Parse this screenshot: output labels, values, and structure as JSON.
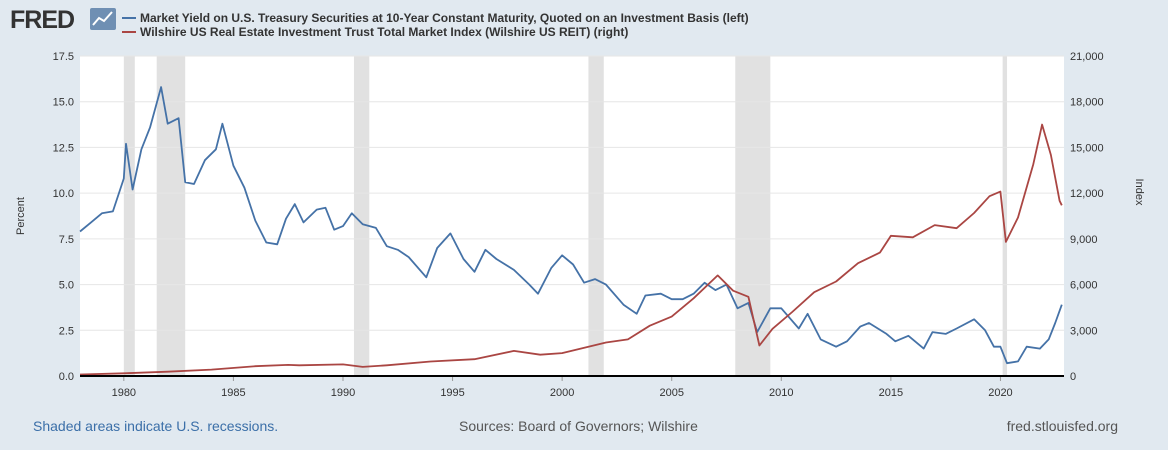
{
  "header": {
    "logo_text": "FRED"
  },
  "footer": {
    "recession_note": "Shaded areas indicate U.S. recessions.",
    "sources": "Sources: Board of Governors; Wilshire",
    "site": "fred.stlouisfed.org"
  },
  "colors": {
    "left_series": "#4572a7",
    "right_series": "#aa4643",
    "recession": "#e1e1e1",
    "background": "#e1e9f0"
  },
  "chart_data": {
    "type": "line",
    "grid": true,
    "legend_placement": "top-left",
    "x_range": [
      1978.0,
      2022.9
    ],
    "x_ticks": [
      "1980",
      "1985",
      "1990",
      "1995",
      "2000",
      "2005",
      "2010",
      "2015",
      "2020"
    ],
    "left_axis": {
      "label": "Percent",
      "range": [
        0,
        17.5
      ],
      "ticks": [
        "0.0",
        "2.5",
        "5.0",
        "7.5",
        "10.0",
        "12.5",
        "15.0",
        "17.5"
      ]
    },
    "right_axis": {
      "label": "Index",
      "range": [
        0,
        21000
      ],
      "ticks": [
        "0",
        "3,000",
        "6,000",
        "9,000",
        "12,000",
        "15,000",
        "18,000",
        "21,000"
      ]
    },
    "recessions": [
      [
        1980.0,
        1980.5
      ],
      [
        1981.5,
        1982.8
      ],
      [
        1990.5,
        1991.2
      ],
      [
        2001.2,
        2001.9
      ],
      [
        2007.9,
        2009.5
      ],
      [
        2020.1,
        2020.3
      ]
    ],
    "series": [
      {
        "name": "Market Yield on U.S. Treasury Securities at 10-Year Constant Maturity, Quoted on an Investment Basis (left)",
        "axis": "left",
        "points": [
          [
            1978.0,
            7.9
          ],
          [
            1978.5,
            8.4
          ],
          [
            1979.0,
            8.9
          ],
          [
            1979.5,
            9.0
          ],
          [
            1980.0,
            10.8
          ],
          [
            1980.1,
            12.7
          ],
          [
            1980.4,
            10.2
          ],
          [
            1980.8,
            12.4
          ],
          [
            1981.2,
            13.6
          ],
          [
            1981.7,
            15.8
          ],
          [
            1982.0,
            13.8
          ],
          [
            1982.5,
            14.1
          ],
          [
            1982.8,
            10.6
          ],
          [
            1983.2,
            10.5
          ],
          [
            1983.7,
            11.8
          ],
          [
            1984.2,
            12.4
          ],
          [
            1984.5,
            13.8
          ],
          [
            1985.0,
            11.5
          ],
          [
            1985.5,
            10.3
          ],
          [
            1986.0,
            8.5
          ],
          [
            1986.5,
            7.3
          ],
          [
            1987.0,
            7.2
          ],
          [
            1987.4,
            8.6
          ],
          [
            1987.8,
            9.4
          ],
          [
            1988.2,
            8.4
          ],
          [
            1988.8,
            9.1
          ],
          [
            1989.2,
            9.2
          ],
          [
            1989.6,
            8.0
          ],
          [
            1990.0,
            8.2
          ],
          [
            1990.4,
            8.9
          ],
          [
            1990.9,
            8.3
          ],
          [
            1991.5,
            8.1
          ],
          [
            1992.0,
            7.1
          ],
          [
            1992.5,
            6.9
          ],
          [
            1993.0,
            6.5
          ],
          [
            1993.8,
            5.4
          ],
          [
            1994.3,
            7.0
          ],
          [
            1994.9,
            7.8
          ],
          [
            1995.5,
            6.4
          ],
          [
            1996.0,
            5.7
          ],
          [
            1996.5,
            6.9
          ],
          [
            1997.0,
            6.4
          ],
          [
            1997.8,
            5.8
          ],
          [
            1998.5,
            5.0
          ],
          [
            1998.9,
            4.5
          ],
          [
            1999.5,
            5.9
          ],
          [
            2000.0,
            6.6
          ],
          [
            2000.5,
            6.1
          ],
          [
            2001.0,
            5.1
          ],
          [
            2001.5,
            5.3
          ],
          [
            2002.0,
            5.0
          ],
          [
            2002.8,
            3.9
          ],
          [
            2003.4,
            3.4
          ],
          [
            2003.8,
            4.4
          ],
          [
            2004.5,
            4.5
          ],
          [
            2005.0,
            4.2
          ],
          [
            2005.5,
            4.2
          ],
          [
            2006.0,
            4.5
          ],
          [
            2006.5,
            5.1
          ],
          [
            2007.0,
            4.7
          ],
          [
            2007.5,
            5.0
          ],
          [
            2008.0,
            3.7
          ],
          [
            2008.5,
            4.0
          ],
          [
            2008.9,
            2.4
          ],
          [
            2009.5,
            3.7
          ],
          [
            2010.0,
            3.7
          ],
          [
            2010.8,
            2.6
          ],
          [
            2011.2,
            3.4
          ],
          [
            2011.8,
            2.0
          ],
          [
            2012.5,
            1.6
          ],
          [
            2013.0,
            1.9
          ],
          [
            2013.6,
            2.7
          ],
          [
            2014.0,
            2.9
          ],
          [
            2014.8,
            2.3
          ],
          [
            2015.2,
            1.9
          ],
          [
            2015.8,
            2.2
          ],
          [
            2016.5,
            1.5
          ],
          [
            2016.9,
            2.4
          ],
          [
            2017.5,
            2.3
          ],
          [
            2018.0,
            2.6
          ],
          [
            2018.8,
            3.1
          ],
          [
            2019.3,
            2.5
          ],
          [
            2019.7,
            1.6
          ],
          [
            2020.0,
            1.6
          ],
          [
            2020.3,
            0.7
          ],
          [
            2020.8,
            0.8
          ],
          [
            2021.2,
            1.6
          ],
          [
            2021.8,
            1.5
          ],
          [
            2022.2,
            2.0
          ],
          [
            2022.5,
            2.9
          ],
          [
            2022.8,
            3.9
          ]
        ]
      },
      {
        "name": "Wilshire US Real Estate Investment Trust Total Market Index (Wilshire US REIT) (right)",
        "axis": "right",
        "points": [
          [
            1978.0,
            100
          ],
          [
            1980.0,
            180
          ],
          [
            1982.0,
            280
          ],
          [
            1984.0,
            420
          ],
          [
            1986.0,
            640
          ],
          [
            1987.5,
            730
          ],
          [
            1988.0,
            700
          ],
          [
            1990.0,
            760
          ],
          [
            1990.9,
            600
          ],
          [
            1992.0,
            700
          ],
          [
            1994.0,
            950
          ],
          [
            1996.0,
            1100
          ],
          [
            1997.8,
            1650
          ],
          [
            1999.0,
            1400
          ],
          [
            2000.0,
            1500
          ],
          [
            2002.0,
            2200
          ],
          [
            2003.0,
            2400
          ],
          [
            2004.0,
            3300
          ],
          [
            2005.0,
            3900
          ],
          [
            2006.0,
            5100
          ],
          [
            2007.1,
            6600
          ],
          [
            2007.8,
            5600
          ],
          [
            2008.5,
            5200
          ],
          [
            2009.0,
            2000
          ],
          [
            2009.6,
            3100
          ],
          [
            2010.5,
            4200
          ],
          [
            2011.5,
            5500
          ],
          [
            2012.5,
            6200
          ],
          [
            2013.5,
            7400
          ],
          [
            2014.5,
            8100
          ],
          [
            2015.0,
            9200
          ],
          [
            2016.0,
            9100
          ],
          [
            2017.0,
            9900
          ],
          [
            2018.0,
            9700
          ],
          [
            2018.8,
            10700
          ],
          [
            2019.5,
            11800
          ],
          [
            2020.0,
            12100
          ],
          [
            2020.25,
            8800
          ],
          [
            2020.8,
            10400
          ],
          [
            2021.5,
            13900
          ],
          [
            2021.9,
            16500
          ],
          [
            2022.3,
            14500
          ],
          [
            2022.7,
            11500
          ],
          [
            2022.8,
            11200
          ]
        ]
      }
    ]
  }
}
